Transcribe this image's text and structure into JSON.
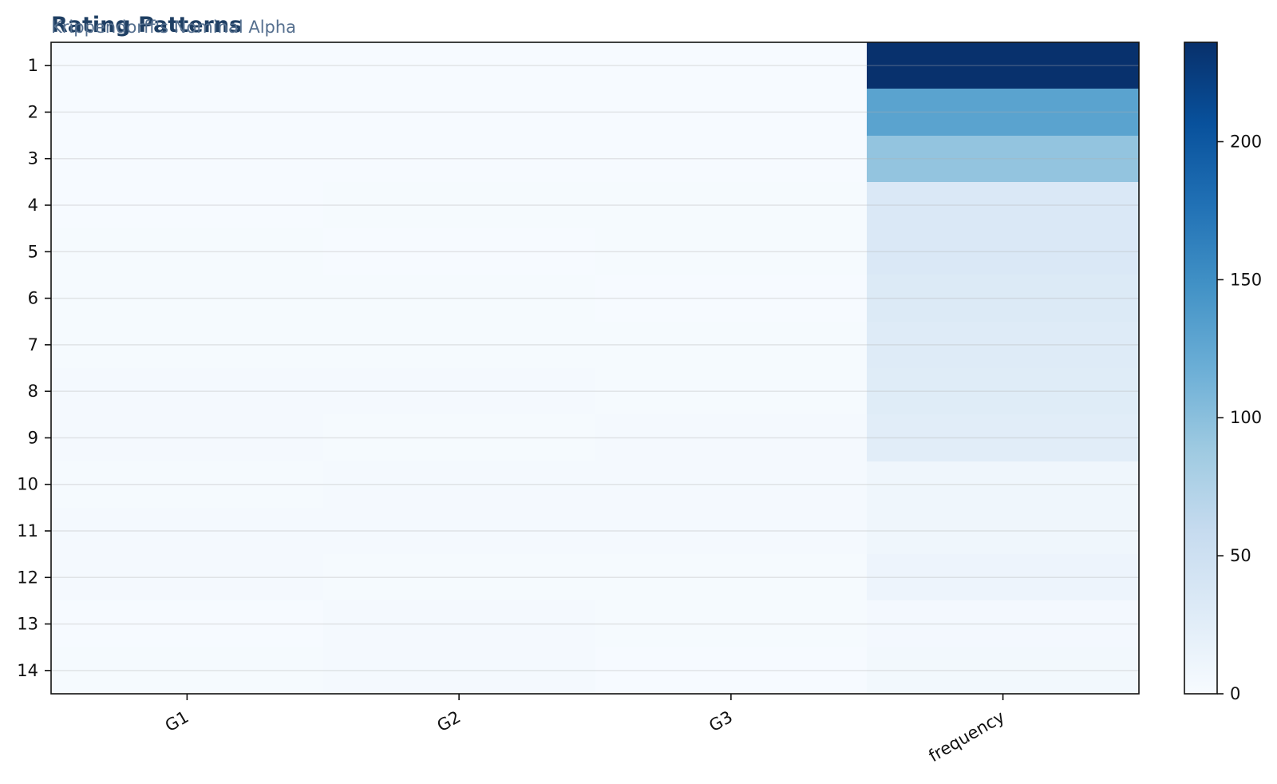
{
  "chart_data": {
    "type": "heatmap",
    "title": "Rating Patterns",
    "subtitle": "Krippendorff's Nominal Alpha",
    "columns": [
      "G1",
      "G2",
      "G3",
      "frequency"
    ],
    "rows": [
      "1",
      "2",
      "3",
      "4",
      "5",
      "6",
      "7",
      "8",
      "9",
      "10",
      "11",
      "12",
      "13",
      "14"
    ],
    "values": [
      [
        1,
        1,
        1,
        235
      ],
      [
        1,
        1,
        1,
        130
      ],
      [
        1,
        1,
        1,
        95
      ],
      [
        1,
        2,
        2,
        35
      ],
      [
        2,
        1,
        2,
        35
      ],
      [
        2,
        2,
        1,
        32
      ],
      [
        2,
        2,
        2,
        30
      ],
      [
        3,
        3,
        2,
        28
      ],
      [
        3,
        2,
        3,
        26
      ],
      [
        2,
        3,
        3,
        10
      ],
      [
        3,
        3,
        3,
        10
      ],
      [
        3,
        2,
        2,
        12
      ],
      [
        1,
        3,
        2,
        5
      ],
      [
        2,
        3,
        1,
        6
      ]
    ],
    "colorbar": {
      "range": [
        0,
        236
      ],
      "ticks": [
        0,
        50,
        100,
        150,
        200
      ],
      "colormap": "Blues"
    },
    "grid": true,
    "colors": {
      "title": "#1f3f63",
      "subtitle": "#56708f",
      "low": "#f7fbff",
      "high": "#08306b"
    }
  }
}
